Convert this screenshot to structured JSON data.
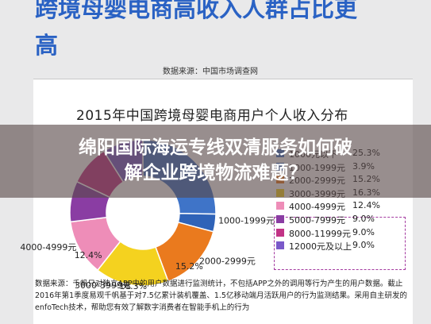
{
  "page": {
    "heading": "跨境母婴电商高收入人群占比更\n高",
    "source_top": "数据来源：中国市场调查网",
    "note": "数据来源：千帆只对独立APP中的用户数据进行监测统计，不包括APP之外的调用等行为产生的用户数据。截止2016年第1季度易观千帆基于对7.5亿累计装机覆盖、1.5亿移动端月活跃用户的行为监测结果。采用自主研发的enfoTech技术，帮助您有效了解数字消费者在智能手机上的行为"
  },
  "banner": {
    "line1": "绵阳国际海运专线双清服务如何破",
    "line2": "解企业跨境物流难题？"
  },
  "chart_data": {
    "type": "pie",
    "donut": true,
    "title": "2015年中国跨境母婴电商用户个人收入分布",
    "categories": [
      "1000元以下",
      "1000-1999元",
      "2000-2999元",
      "3000-3999元",
      "4000-4999元",
      "5000-7999元",
      "8000-11999元",
      "12000元及以上"
    ],
    "values": [
      25.3,
      3.9,
      15.2,
      16.3,
      12.4,
      9.0,
      9.0,
      9.0
    ],
    "colors": [
      "#3f74c8",
      "#2f63b8",
      "#ea7a1e",
      "#f4d21f",
      "#ee8db8",
      "#8a3da3",
      "#c23386",
      "#7a59c9"
    ],
    "slice_labels": [
      "",
      "1000-1999元",
      "2000-2999元",
      "3000-3999元",
      "4000-4999元",
      "",
      "",
      ""
    ],
    "slice_values_shown": [
      "",
      "",
      "15.2%",
      "16.3%",
      "12.4%",
      "",
      "",
      ""
    ],
    "legend": [
      {
        "label": "1000元以下",
        "value": "25.3%"
      },
      {
        "label": "1000-1999元",
        "value": "3.9%"
      },
      {
        "label": "2000-2999元",
        "value": "15.2%"
      },
      {
        "label": "3000-3999元",
        "value": "16.3%"
      },
      {
        "label": "4000-4999元",
        "value": "12.4%"
      },
      {
        "label": "5000-7999元",
        "value": "9.0%"
      },
      {
        "label": "8000-11999元",
        "value": "9.0%"
      },
      {
        "label": "12000元及以上",
        "value": "9.0%"
      }
    ],
    "legend_position": "right"
  }
}
